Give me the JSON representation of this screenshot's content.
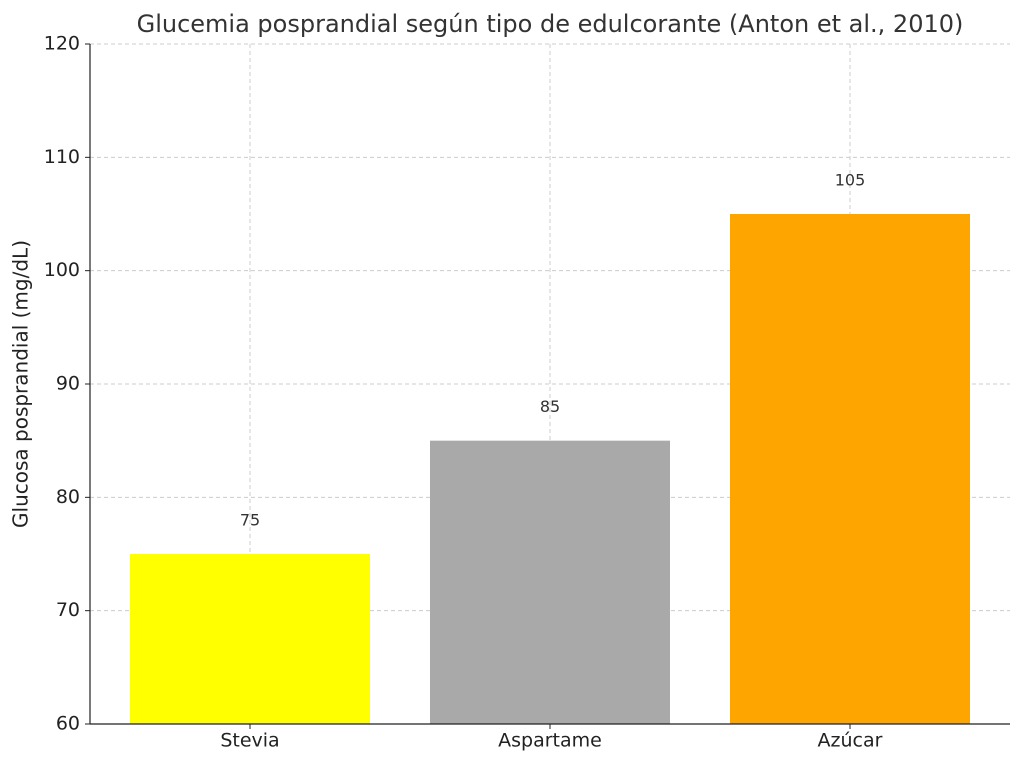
{
  "chart_data": {
    "type": "bar",
    "title": "Glucemia posprandial según tipo de edulcorante (Anton et al., 2010)",
    "ylabel": "Glucosa posprandial (mg/dL)",
    "categories": [
      "Stevia",
      "Aspartame",
      "Azúcar"
    ],
    "values": [
      75,
      85,
      105
    ],
    "colors": [
      "#ffff00",
      "#a9a9a9",
      "#ffa500"
    ],
    "ylim": [
      60,
      120
    ],
    "yticks": [
      60,
      70,
      80,
      90,
      100,
      110,
      120
    ],
    "grid": true
  }
}
